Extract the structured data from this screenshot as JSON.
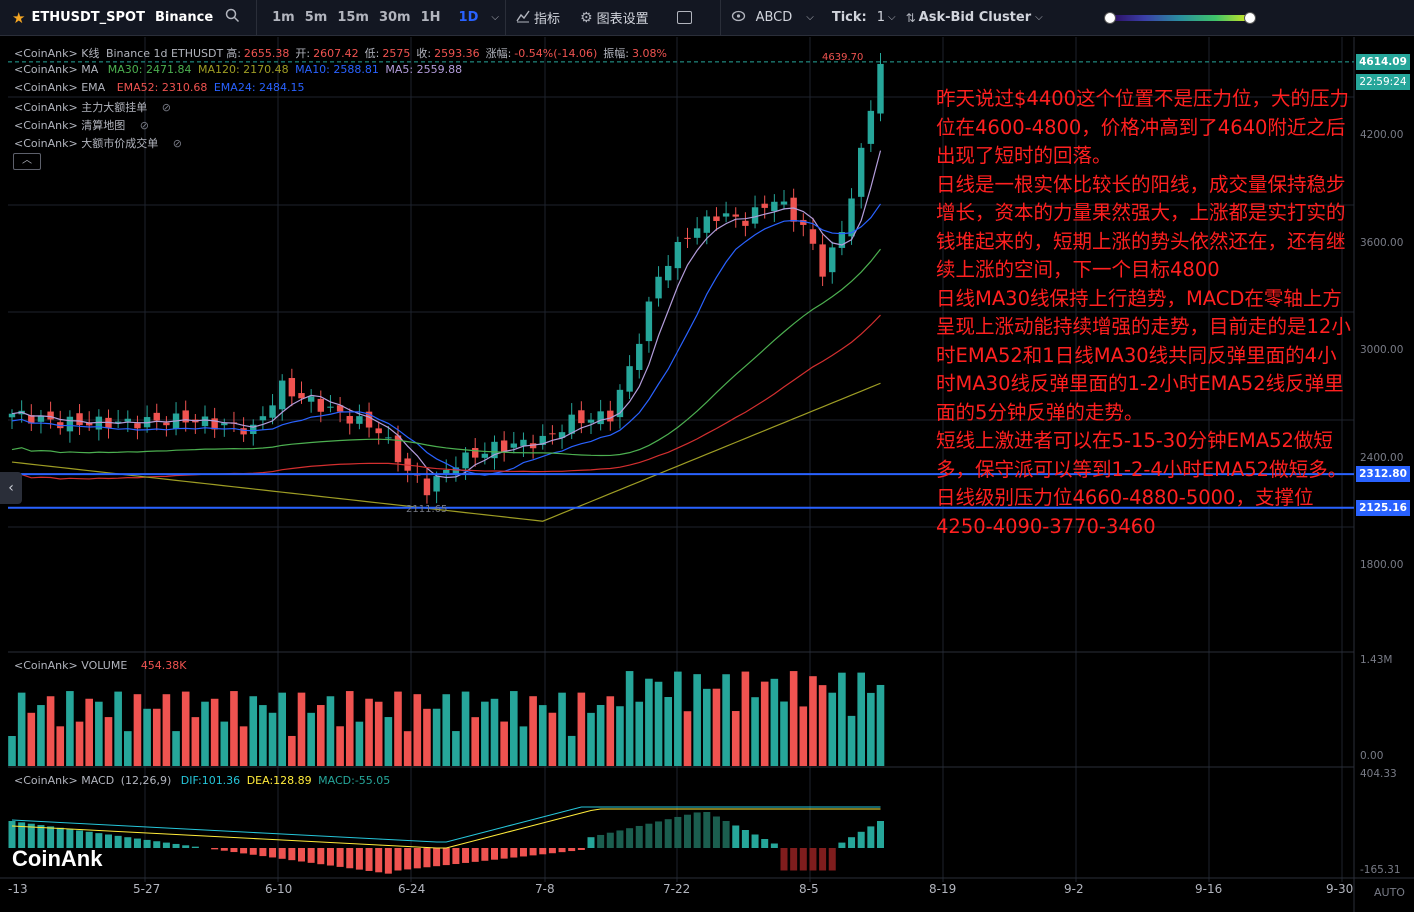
{
  "toolbar": {
    "symbol": "ETHUSDT_SPOT",
    "exchange": "Binance",
    "timeframes": [
      "1m",
      "5m",
      "15m",
      "30m",
      "1H",
      "1D"
    ],
    "active_timeframe": "1D",
    "indicators_label": "指标",
    "chart_settings_label": "图表设置",
    "drawing_label": "ABCD",
    "tick_label": "Tick:",
    "tick_value": "1",
    "cluster_label": "Ask-Bid Cluster"
  },
  "legend": {
    "kline": {
      "prefix": "<CoinAnk> K线",
      "info": "Binance 1d ETHUSDT",
      "high_label": "高:",
      "high": "2655.38",
      "open_label": "开:",
      "open": "2607.42",
      "low_label": "低:",
      "low": "2575",
      "close_label": "收:",
      "close": "2593.36",
      "change_label": "涨幅:",
      "change": "-0.54%(-14.06)",
      "amp_label": "振幅:",
      "amp": "3.08%"
    },
    "ma": {
      "prefix": "<CoinAnk> MA",
      "ma30": "MA30: 2471.84",
      "ma120": "MA120: 2170.48",
      "ma10": "MA10: 2588.81",
      "ma5": "MA5: 2559.88"
    },
    "ema": {
      "prefix": "<CoinAnk> EMA",
      "ema52": "EMA52: 2310.68",
      "ema24": "EMA24: 2484.15"
    },
    "hidden": [
      "<CoinAnk> 主力大额挂单",
      "<CoinAnk> 清算地图",
      "<CoinAnk> 大额市价成交单"
    ]
  },
  "annotation": [
    "昨天说过$4400这个位置不是压力位，大的压力位在4600-4800，价格冲高到了4640附近之后出现了短时的回落。",
    "日线是一根实体比较长的阳线，成交量保持稳步增长，资本的力量果然强大，上涨都是实打实的钱堆起来的，短期上涨的势头依然还在，还有继续上涨的空间，下一个目标4800",
    "日线MA30线保持上行趋势，MACD在零轴上方呈现上涨动能持续增强的走势，目前走的是12小时EMA52和1日线MA30线共同反弹里面的4小时MA30线反弹里面的1-2小时EMA52线反弹里面的5分钟反弹的走势。",
    "短线上激进者可以在5-15-30分钟EMA52做短多，保守派可以等到1-2-4小时EMA52做短多。",
    "日线级别压力位4660-4880-5000，支撑位4250-4090-3770-3460"
  ],
  "price_axis": {
    "labels": [
      "4200.00",
      "3600.00",
      "3000.00",
      "2400.00",
      "1800.00"
    ],
    "current_price": "4614.09",
    "countdown": "22:59:24",
    "line1_price": "2312.80",
    "line2_price": "2125.16",
    "high_marker": "4639.70",
    "low_marker": "2111.65"
  },
  "volume": {
    "label": "<CoinAnk> VOLUME",
    "value": "454.38K",
    "axis_top": "1.43M",
    "axis_bottom": "0.00"
  },
  "macd": {
    "label": "<CoinAnk> MACD",
    "params": "(12,26,9)",
    "dif": "DIF:101.36",
    "dea": "DEA:128.89",
    "macd": "MACD:-55.05",
    "axis_top": "404.33",
    "axis_bottom": "-165.31"
  },
  "time_axis": {
    "labels": [
      "-13",
      "5-27",
      "6-10",
      "6-24",
      "7-8",
      "7-22",
      "8-5",
      "8-19",
      "9-2",
      "9-16",
      "9-30"
    ],
    "auto_label": "AUTO"
  },
  "watermark": "CoinAnk",
  "colors": {
    "up": "#26a69a",
    "down": "#ef5350",
    "ma30": "#4caf50",
    "ma10": "#2962ff",
    "ma5": "#b39ddb",
    "ma120": "#9e9d24",
    "ema52": "#d32f2f",
    "hline": "#2962ff"
  }
}
